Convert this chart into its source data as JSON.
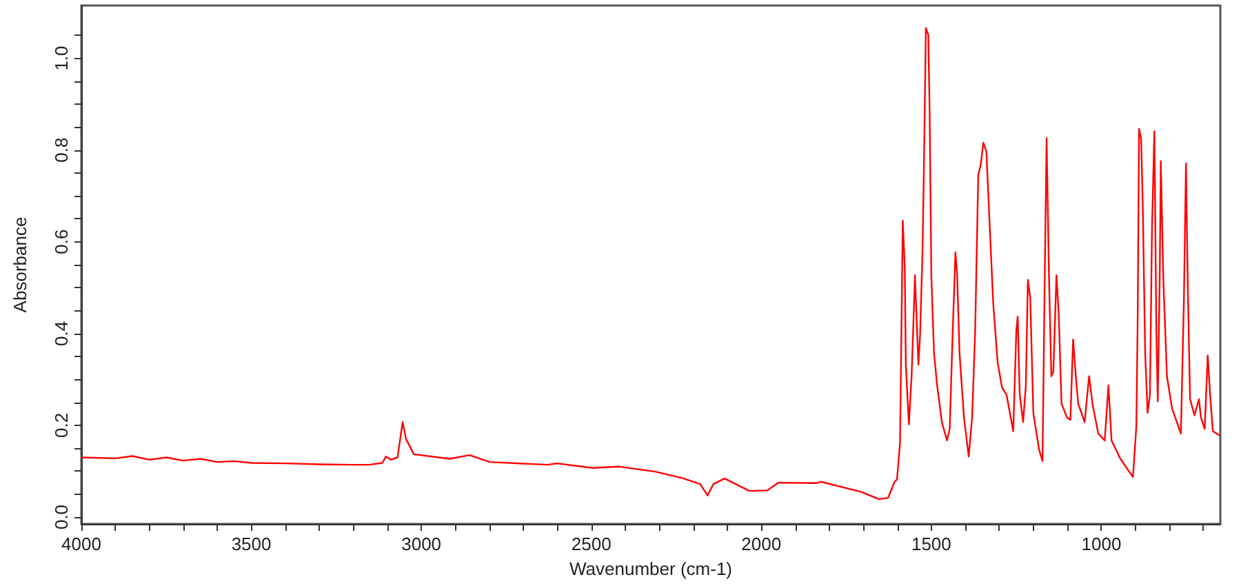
{
  "chart_data": {
    "type": "line",
    "xlabel": "Wavenumber (cm-1)",
    "ylabel": "Absorbance",
    "grid": false,
    "marker": "none",
    "line_style": "solid",
    "xlim": [
      4000,
      650
    ],
    "ylim": [
      -0.015,
      1.115
    ],
    "xticks": [
      4000,
      {
        "value": 3900,
        "label": null
      },
      {
        "value": 3800,
        "label": null
      },
      {
        "value": 3700,
        "label": null
      },
      {
        "value": 3600,
        "label": null
      },
      3500,
      {
        "value": 3400,
        "label": null
      },
      {
        "value": 3300,
        "label": null
      },
      {
        "value": 3200,
        "label": null
      },
      {
        "value": 3100,
        "label": null
      },
      3000,
      {
        "value": 2900,
        "label": null
      },
      {
        "value": 2800,
        "label": null
      },
      {
        "value": 2700,
        "label": null
      },
      {
        "value": 2600,
        "label": null
      },
      2500,
      {
        "value": 2400,
        "label": null
      },
      {
        "value": 2300,
        "label": null
      },
      {
        "value": 2200,
        "label": null
      },
      {
        "value": 2100,
        "label": null
      },
      2000,
      {
        "value": 1900,
        "label": null
      },
      {
        "value": 1800,
        "label": null
      },
      {
        "value": 1700,
        "label": null
      },
      {
        "value": 1600,
        "label": null
      },
      1500,
      {
        "value": 1400,
        "label": null
      },
      {
        "value": 1300,
        "label": null
      },
      {
        "value": 1200,
        "label": null
      },
      {
        "value": 1100,
        "label": null
      },
      1000,
      {
        "value": 900,
        "label": null
      },
      {
        "value": 800,
        "label": null
      },
      {
        "value": 700,
        "label": null
      }
    ],
    "yticks": [
      {
        "value": 0,
        "label": "0.0"
      },
      {
        "value": 0.05,
        "label": null
      },
      {
        "value": 0.1,
        "label": null
      },
      {
        "value": 0.15,
        "label": null
      },
      {
        "value": 0.2,
        "label": "0.2"
      },
      {
        "value": 0.25,
        "label": null
      },
      {
        "value": 0.3,
        "label": null
      },
      {
        "value": 0.35,
        "label": null
      },
      {
        "value": 0.4,
        "label": "0.4"
      },
      {
        "value": 0.45,
        "label": null
      },
      {
        "value": 0.5,
        "label": null
      },
      {
        "value": 0.55,
        "label": null
      },
      {
        "value": 0.6,
        "label": "0.6"
      },
      {
        "value": 0.65,
        "label": null
      },
      {
        "value": 0.7,
        "label": null
      },
      {
        "value": 0.75,
        "label": null
      },
      {
        "value": 0.8,
        "label": "0.8"
      },
      {
        "value": 0.85,
        "label": null
      },
      {
        "value": 0.9,
        "label": null
      },
      {
        "value": 0.95,
        "label": null
      },
      {
        "value": 1,
        "label": "1.0"
      },
      {
        "value": 1.05,
        "label": null
      }
    ],
    "series": [
      {
        "color": "#ff0000",
        "x": [
          4000,
          3900,
          3850,
          3800,
          3750,
          3700,
          3650,
          3600,
          3550,
          3500,
          3400,
          3300,
          3200,
          3154,
          3115,
          3104,
          3090,
          3070,
          3055,
          3045,
          3022,
          2917,
          2858,
          2799,
          2628,
          2601,
          2496,
          2417,
          2312,
          2233,
          2180,
          2158,
          2141,
          2108,
          2035,
          1983,
          1950,
          1838,
          1825,
          1707,
          1654,
          1627,
          1608,
          1601,
          1592,
          1584,
          1578,
          1575,
          1566,
          1558,
          1548,
          1542,
          1538,
          1533,
          1526,
          1522,
          1516,
          1509,
          1505,
          1500,
          1492,
          1483,
          1469,
          1454,
          1446,
          1437,
          1429,
          1424,
          1417,
          1404,
          1390,
          1380,
          1371,
          1362,
          1355,
          1347,
          1338,
          1329,
          1318,
          1305,
          1292,
          1279,
          1259,
          1250,
          1246,
          1240,
          1230,
          1222,
          1216,
          1209,
          1200,
          1183,
          1173,
          1167,
          1161,
          1154,
          1147,
          1141,
          1132,
          1125,
          1117,
          1101,
          1091,
          1083,
          1075,
          1068,
          1049,
          1036,
          1026,
          1009,
          990,
          979,
          970,
          944,
          907,
          897,
          893,
          889,
          883,
          878,
          871,
          864,
          857,
          851,
          844,
          838,
          834,
          828,
          825,
          818,
          807,
          792,
          766,
          757,
          751,
          746,
          739,
          726,
          713,
          707,
          696,
          687,
          680,
          672,
          660,
          651
        ],
        "values": [
          0.13,
          0.128,
          0.133,
          0.125,
          0.13,
          0.123,
          0.127,
          0.12,
          0.122,
          0.118,
          0.117,
          0.115,
          0.114,
          0.114,
          0.118,
          0.132,
          0.125,
          0.13,
          0.207,
          0.17,
          0.137,
          0.127,
          0.135,
          0.12,
          0.114,
          0.117,
          0.107,
          0.11,
          0.099,
          0.085,
          0.072,
          0.047,
          0.072,
          0.084,
          0.057,
          0.058,
          0.075,
          0.074,
          0.077,
          0.055,
          0.039,
          0.042,
          0.077,
          0.082,
          0.162,
          0.646,
          0.542,
          0.332,
          0.202,
          0.307,
          0.527,
          0.407,
          0.332,
          0.397,
          0.577,
          0.751,
          1.066,
          1.051,
          0.886,
          0.527,
          0.357,
          0.287,
          0.207,
          0.167,
          0.192,
          0.407,
          0.577,
          0.527,
          0.357,
          0.217,
          0.132,
          0.217,
          0.407,
          0.746,
          0.766,
          0.816,
          0.796,
          0.646,
          0.467,
          0.337,
          0.282,
          0.267,
          0.187,
          0.407,
          0.437,
          0.267,
          0.207,
          0.287,
          0.517,
          0.477,
          0.227,
          0.147,
          0.122,
          0.487,
          0.826,
          0.527,
          0.307,
          0.317,
          0.527,
          0.437,
          0.247,
          0.217,
          0.212,
          0.387,
          0.307,
          0.247,
          0.207,
          0.307,
          0.247,
          0.182,
          0.167,
          0.287,
          0.167,
          0.127,
          0.087,
          0.197,
          0.437,
          0.846,
          0.826,
          0.676,
          0.357,
          0.227,
          0.267,
          0.626,
          0.841,
          0.397,
          0.252,
          0.536,
          0.776,
          0.527,
          0.307,
          0.237,
          0.182,
          0.477,
          0.771,
          0.517,
          0.257,
          0.222,
          0.257,
          0.217,
          0.192,
          0.352,
          0.267,
          0.187,
          0.182,
          0.177
        ]
      }
    ]
  }
}
